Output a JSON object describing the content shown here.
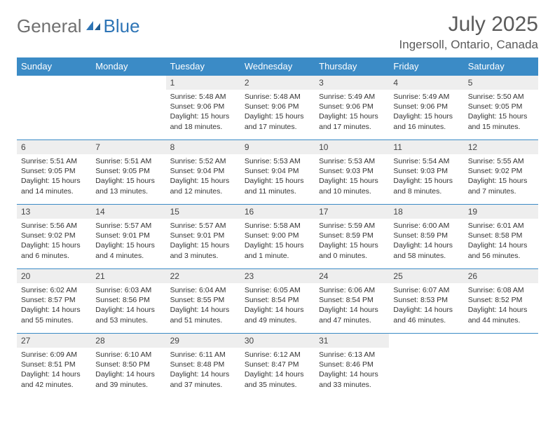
{
  "logo": {
    "text1": "General",
    "text2": "Blue"
  },
  "title": "July 2025",
  "location": "Ingersoll, Ontario, Canada",
  "colors": {
    "header_bg": "#3b8bc6",
    "header_text": "#ffffff",
    "rule": "#3b8bc6",
    "daynum_bg": "#eeeeee",
    "text": "#333333",
    "logo_gray": "#707070",
    "logo_blue": "#2e75b6"
  },
  "weekdays": [
    "Sunday",
    "Monday",
    "Tuesday",
    "Wednesday",
    "Thursday",
    "Friday",
    "Saturday"
  ],
  "weeks": [
    [
      null,
      null,
      {
        "n": "1",
        "sunrise": "5:48 AM",
        "sunset": "9:06 PM",
        "daylight": "15 hours and 18 minutes."
      },
      {
        "n": "2",
        "sunrise": "5:48 AM",
        "sunset": "9:06 PM",
        "daylight": "15 hours and 17 minutes."
      },
      {
        "n": "3",
        "sunrise": "5:49 AM",
        "sunset": "9:06 PM",
        "daylight": "15 hours and 17 minutes."
      },
      {
        "n": "4",
        "sunrise": "5:49 AM",
        "sunset": "9:06 PM",
        "daylight": "15 hours and 16 minutes."
      },
      {
        "n": "5",
        "sunrise": "5:50 AM",
        "sunset": "9:05 PM",
        "daylight": "15 hours and 15 minutes."
      }
    ],
    [
      {
        "n": "6",
        "sunrise": "5:51 AM",
        "sunset": "9:05 PM",
        "daylight": "15 hours and 14 minutes."
      },
      {
        "n": "7",
        "sunrise": "5:51 AM",
        "sunset": "9:05 PM",
        "daylight": "15 hours and 13 minutes."
      },
      {
        "n": "8",
        "sunrise": "5:52 AM",
        "sunset": "9:04 PM",
        "daylight": "15 hours and 12 minutes."
      },
      {
        "n": "9",
        "sunrise": "5:53 AM",
        "sunset": "9:04 PM",
        "daylight": "15 hours and 11 minutes."
      },
      {
        "n": "10",
        "sunrise": "5:53 AM",
        "sunset": "9:03 PM",
        "daylight": "15 hours and 10 minutes."
      },
      {
        "n": "11",
        "sunrise": "5:54 AM",
        "sunset": "9:03 PM",
        "daylight": "15 hours and 8 minutes."
      },
      {
        "n": "12",
        "sunrise": "5:55 AM",
        "sunset": "9:02 PM",
        "daylight": "15 hours and 7 minutes."
      }
    ],
    [
      {
        "n": "13",
        "sunrise": "5:56 AM",
        "sunset": "9:02 PM",
        "daylight": "15 hours and 6 minutes."
      },
      {
        "n": "14",
        "sunrise": "5:57 AM",
        "sunset": "9:01 PM",
        "daylight": "15 hours and 4 minutes."
      },
      {
        "n": "15",
        "sunrise": "5:57 AM",
        "sunset": "9:01 PM",
        "daylight": "15 hours and 3 minutes."
      },
      {
        "n": "16",
        "sunrise": "5:58 AM",
        "sunset": "9:00 PM",
        "daylight": "15 hours and 1 minute."
      },
      {
        "n": "17",
        "sunrise": "5:59 AM",
        "sunset": "8:59 PM",
        "daylight": "15 hours and 0 minutes."
      },
      {
        "n": "18",
        "sunrise": "6:00 AM",
        "sunset": "8:59 PM",
        "daylight": "14 hours and 58 minutes."
      },
      {
        "n": "19",
        "sunrise": "6:01 AM",
        "sunset": "8:58 PM",
        "daylight": "14 hours and 56 minutes."
      }
    ],
    [
      {
        "n": "20",
        "sunrise": "6:02 AM",
        "sunset": "8:57 PM",
        "daylight": "14 hours and 55 minutes."
      },
      {
        "n": "21",
        "sunrise": "6:03 AM",
        "sunset": "8:56 PM",
        "daylight": "14 hours and 53 minutes."
      },
      {
        "n": "22",
        "sunrise": "6:04 AM",
        "sunset": "8:55 PM",
        "daylight": "14 hours and 51 minutes."
      },
      {
        "n": "23",
        "sunrise": "6:05 AM",
        "sunset": "8:54 PM",
        "daylight": "14 hours and 49 minutes."
      },
      {
        "n": "24",
        "sunrise": "6:06 AM",
        "sunset": "8:54 PM",
        "daylight": "14 hours and 47 minutes."
      },
      {
        "n": "25",
        "sunrise": "6:07 AM",
        "sunset": "8:53 PM",
        "daylight": "14 hours and 46 minutes."
      },
      {
        "n": "26",
        "sunrise": "6:08 AM",
        "sunset": "8:52 PM",
        "daylight": "14 hours and 44 minutes."
      }
    ],
    [
      {
        "n": "27",
        "sunrise": "6:09 AM",
        "sunset": "8:51 PM",
        "daylight": "14 hours and 42 minutes."
      },
      {
        "n": "28",
        "sunrise": "6:10 AM",
        "sunset": "8:50 PM",
        "daylight": "14 hours and 39 minutes."
      },
      {
        "n": "29",
        "sunrise": "6:11 AM",
        "sunset": "8:48 PM",
        "daylight": "14 hours and 37 minutes."
      },
      {
        "n": "30",
        "sunrise": "6:12 AM",
        "sunset": "8:47 PM",
        "daylight": "14 hours and 35 minutes."
      },
      {
        "n": "31",
        "sunrise": "6:13 AM",
        "sunset": "8:46 PM",
        "daylight": "14 hours and 33 minutes."
      },
      null,
      null
    ]
  ],
  "labels": {
    "sunrise": "Sunrise: ",
    "sunset": "Sunset: ",
    "daylight": "Daylight: "
  }
}
